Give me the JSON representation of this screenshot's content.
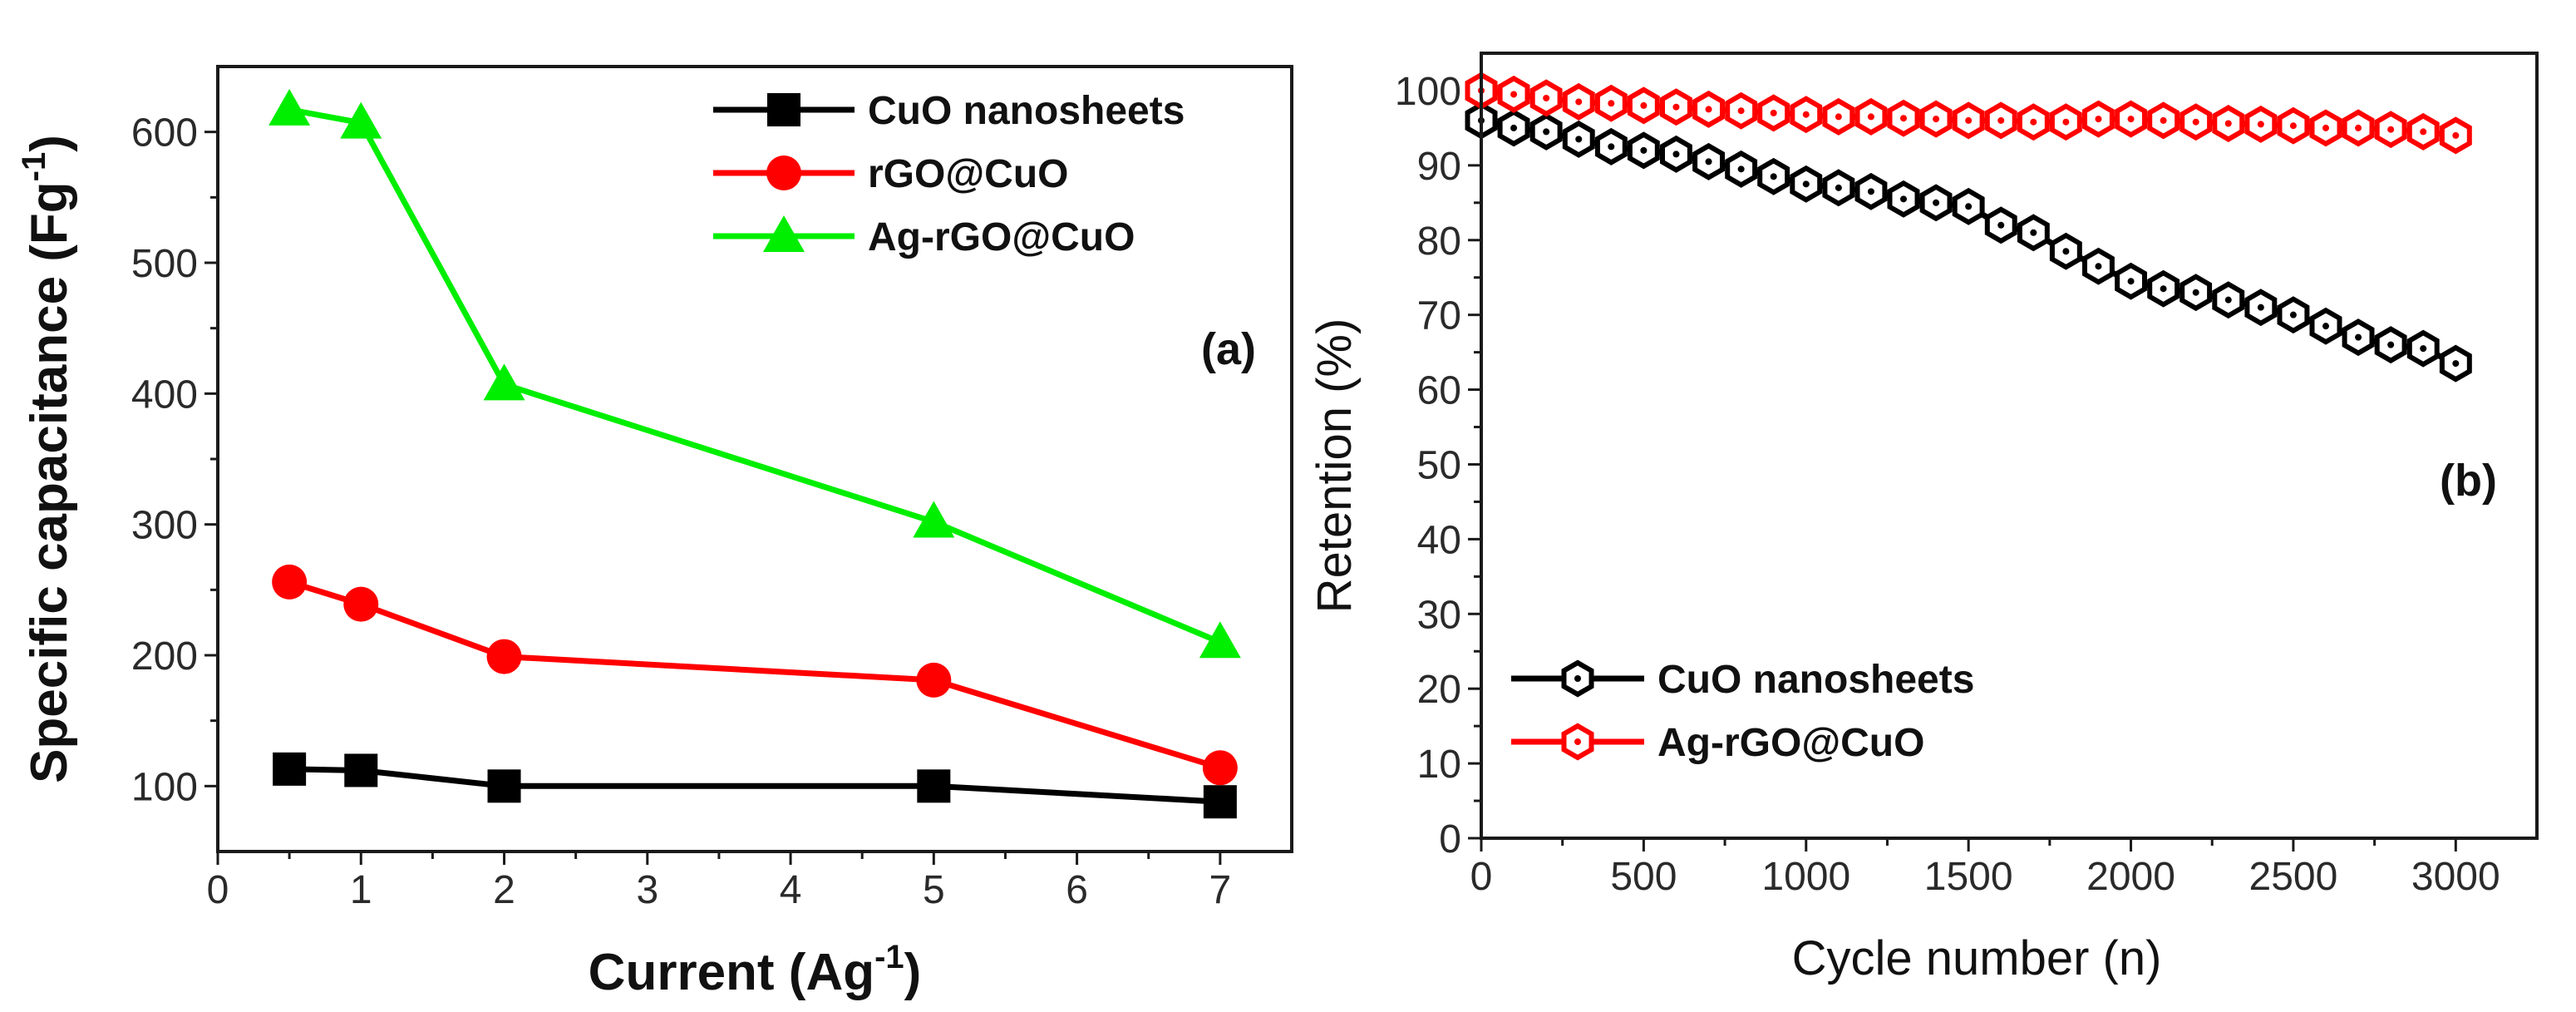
{
  "chart_data": [
    {
      "id": "a",
      "type": "line",
      "panel_label": "(a)",
      "xlabel": "Current (Ag",
      "xlabel_sup": "-1",
      "xlabel_end": ")",
      "ylabel": "Specific capacitance (Fg",
      "ylabel_sup": "-1",
      "ylabel_end": ")",
      "xlim": [
        0,
        7.5
      ],
      "ylim": [
        50,
        650
      ],
      "xticks": [
        0,
        1,
        2,
        3,
        4,
        5,
        6,
        7
      ],
      "yticks": [
        100,
        200,
        300,
        400,
        500,
        600
      ],
      "x": [
        0.5,
        1,
        2,
        5,
        7
      ],
      "legend_position": "top-right",
      "series": [
        {
          "name": "CuO nanosheets",
          "color": "#000000",
          "marker": "square",
          "values": [
            113,
            112,
            100,
            100,
            88
          ]
        },
        {
          "name": "rGO@CuO",
          "color": "#ff0000",
          "marker": "circle",
          "values": [
            256,
            239,
            199,
            181,
            114
          ]
        },
        {
          "name": "Ag-rGO@CuO",
          "color": "#00ee00",
          "marker": "triangle",
          "values": [
            617,
            607,
            407,
            302,
            210
          ]
        }
      ]
    },
    {
      "id": "b",
      "type": "line",
      "panel_label": "(b)",
      "xlabel": "Cycle number (n)",
      "ylabel": "Retention (%)",
      "xlim": [
        0,
        3250
      ],
      "ylim": [
        0,
        105
      ],
      "xticks": [
        0,
        500,
        1000,
        1500,
        2000,
        2500,
        3000
      ],
      "yticks": [
        0,
        10,
        20,
        30,
        40,
        50,
        60,
        70,
        80,
        90,
        100
      ],
      "x": [
        0,
        100,
        200,
        300,
        400,
        500,
        600,
        700,
        800,
        900,
        1000,
        1100,
        1200,
        1300,
        1400,
        1500,
        1600,
        1700,
        1800,
        1900,
        2000,
        2100,
        2200,
        2300,
        2400,
        2500,
        2600,
        2700,
        2800,
        2900,
        3000
      ],
      "legend_position": "bottom-left",
      "series": [
        {
          "name": "CuO nanosheets",
          "color": "#000000",
          "marker": "hex-dot",
          "values": [
            96,
            95,
            94.5,
            93.5,
            92.5,
            92,
            91.5,
            90.5,
            89.5,
            88.5,
            87.5,
            87,
            86.5,
            85.5,
            85,
            84.5,
            82,
            81,
            78.5,
            76.5,
            74.5,
            73.5,
            73,
            72,
            71,
            70,
            68.5,
            67,
            66,
            65.5,
            63.5
          ]
        },
        {
          "name": "Ag-rGO@CuO",
          "color": "#ff0000",
          "marker": "hex-dot",
          "values": [
            100,
            99.5,
            99,
            98.5,
            98.3,
            98,
            97.8,
            97.5,
            97.3,
            97,
            96.8,
            96.5,
            96.5,
            96.3,
            96.2,
            96,
            96,
            95.8,
            95.8,
            96.2,
            96.2,
            96,
            95.8,
            95.6,
            95.5,
            95.3,
            95,
            95,
            94.8,
            94.5,
            94
          ]
        }
      ]
    }
  ]
}
